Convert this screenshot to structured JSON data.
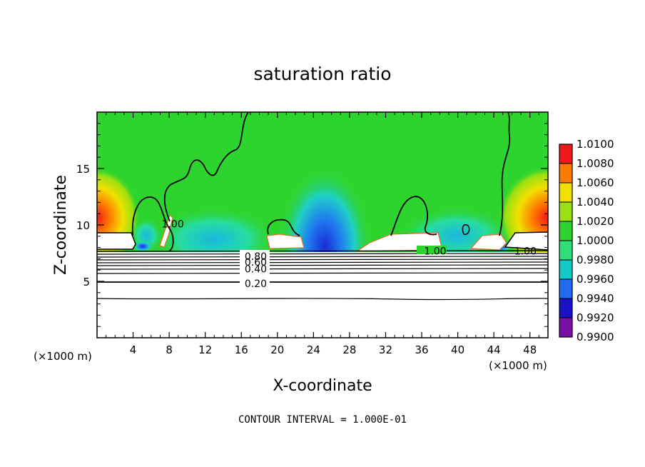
{
  "chart_data": {
    "type": "heatmap",
    "title": "saturation ratio",
    "xlabel": "X-coordinate",
    "ylabel": "Z-coordinate",
    "x_unit": "(×1000 m)",
    "x_unit_right": "(×1000 m)",
    "xlim": [
      0,
      50
    ],
    "ylim": [
      0,
      20
    ],
    "xticks": [
      4,
      8,
      12,
      16,
      20,
      24,
      28,
      32,
      36,
      40,
      44,
      48
    ],
    "yticks": [
      5,
      10,
      15
    ],
    "colorbar": {
      "levels": [
        "0.9900",
        "0.9920",
        "0.9940",
        "0.9960",
        "0.9980",
        "1.0000",
        "1.0020",
        "1.0040",
        "1.0060",
        "1.0080",
        "1.0100"
      ],
      "colors": [
        "#7a10a8",
        "#1a10c8",
        "#1f6cf0",
        "#12c8c8",
        "#2ee07a",
        "#2ed42e",
        "#9ae010",
        "#f0e000",
        "#ff7a00",
        "#f01818",
        "#f08a8a"
      ]
    },
    "contour_labels": [
      {
        "text": "1.00",
        "x": 8.4,
        "z": 10.1
      },
      {
        "text": "1.00",
        "x": 37.5,
        "z": 7.7
      },
      {
        "text": "1.00",
        "x": 47.5,
        "z": 7.7
      },
      {
        "text": "0.80",
        "x": 17.6,
        "z": 7.2
      },
      {
        "text": "0.60",
        "x": 17.6,
        "z": 6.7
      },
      {
        "text": "0.40",
        "x": 17.6,
        "z": 6.1
      },
      {
        "text": "0.20",
        "x": 17.6,
        "z": 4.8
      }
    ],
    "footer": "CONTOUR INTERVAL = 1.000E-01"
  }
}
